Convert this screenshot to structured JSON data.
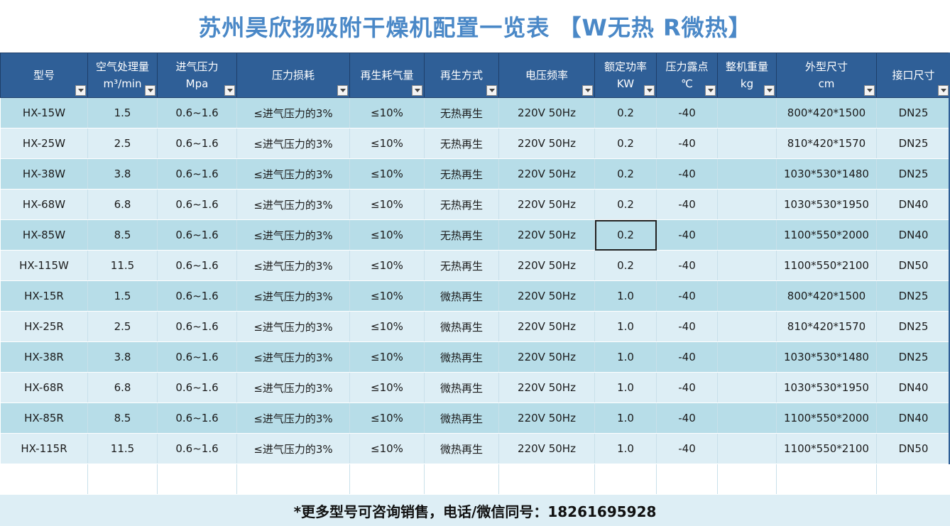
{
  "title": "苏州昊欣扬吸附干燥机配置一览表 【W无热 R微热】",
  "columns": [
    {
      "line1": "型号",
      "line2": ""
    },
    {
      "line1": "空气处理量",
      "line2": "m³/min"
    },
    {
      "line1": "进气压力",
      "line2": "Mpa"
    },
    {
      "line1": "压力损耗",
      "line2": ""
    },
    {
      "line1": "再生耗气量",
      "line2": ""
    },
    {
      "line1": "再生方式",
      "line2": ""
    },
    {
      "line1": "电压频率",
      "line2": ""
    },
    {
      "line1": "额定功率",
      "line2": "KW"
    },
    {
      "line1": "压力露点",
      "line2": "℃"
    },
    {
      "line1": "整机重量",
      "line2": "kg"
    },
    {
      "line1": "外型尺寸",
      "line2": "cm"
    },
    {
      "line1": "接口尺寸",
      "line2": ""
    }
  ],
  "rows": [
    [
      "HX-15W",
      "1.5",
      "0.6~1.6",
      "≤进气压力的3%",
      "≤10%",
      "无热再生",
      "220V 50Hz",
      "0.2",
      "-40",
      "",
      "800*420*1500",
      "DN25"
    ],
    [
      "HX-25W",
      "2.5",
      "0.6~1.6",
      "≤进气压力的3%",
      "≤10%",
      "无热再生",
      "220V 50Hz",
      "0.2",
      "-40",
      "",
      "810*420*1570",
      "DN25"
    ],
    [
      "HX-38W",
      "3.8",
      "0.6~1.6",
      "≤进气压力的3%",
      "≤10%",
      "无热再生",
      "220V 50Hz",
      "0.2",
      "-40",
      "",
      "1030*530*1480",
      "DN25"
    ],
    [
      "HX-68W",
      "6.8",
      "0.6~1.6",
      "≤进气压力的3%",
      "≤10%",
      "无热再生",
      "220V 50Hz",
      "0.2",
      "-40",
      "",
      "1030*530*1950",
      "DN40"
    ],
    [
      "HX-85W",
      "8.5",
      "0.6~1.6",
      "≤进气压力的3%",
      "≤10%",
      "无热再生",
      "220V 50Hz",
      "0.2",
      "-40",
      "",
      "1100*550*2000",
      "DN40"
    ],
    [
      "HX-115W",
      "11.5",
      "0.6~1.6",
      "≤进气压力的3%",
      "≤10%",
      "无热再生",
      "220V 50Hz",
      "0.2",
      "-40",
      "",
      "1100*550*2100",
      "DN50"
    ],
    [
      "HX-15R",
      "1.5",
      "0.6~1.6",
      "≤进气压力的3%",
      "≤10%",
      "微热再生",
      "220V 50Hz",
      "1.0",
      "-40",
      "",
      "800*420*1500",
      "DN25"
    ],
    [
      "HX-25R",
      "2.5",
      "0.6~1.6",
      "≤进气压力的3%",
      "≤10%",
      "微热再生",
      "220V 50Hz",
      "1.0",
      "-40",
      "",
      "810*420*1570",
      "DN25"
    ],
    [
      "HX-38R",
      "3.8",
      "0.6~1.6",
      "≤进气压力的3%",
      "≤10%",
      "微热再生",
      "220V 50Hz",
      "1.0",
      "-40",
      "",
      "1030*530*1480",
      "DN25"
    ],
    [
      "HX-68R",
      "6.8",
      "0.6~1.6",
      "≤进气压力的3%",
      "≤10%",
      "微热再生",
      "220V 50Hz",
      "1.0",
      "-40",
      "",
      "1030*530*1950",
      "DN40"
    ],
    [
      "HX-85R",
      "8.5",
      "0.6~1.6",
      "≤进气压力的3%",
      "≤10%",
      "微热再生",
      "220V 50Hz",
      "1.0",
      "-40",
      "",
      "1100*550*2000",
      "DN40"
    ],
    [
      "HX-115R",
      "11.5",
      "0.6~1.6",
      "≤进气压力的3%",
      "≤10%",
      "微热再生",
      "220V 50Hz",
      "1.0",
      "-40",
      "",
      "1100*550*2100",
      "DN50"
    ]
  ],
  "footer": "*更多型号可咨询销售，电话/微信同号：18261695928",
  "colors": {
    "title": "#4a88c7",
    "header_bg": "#2f5f97",
    "row_dark": "#b7dde8",
    "row_light": "#ddeef5"
  },
  "filter_icon": "dropdown-arrow-icon"
}
